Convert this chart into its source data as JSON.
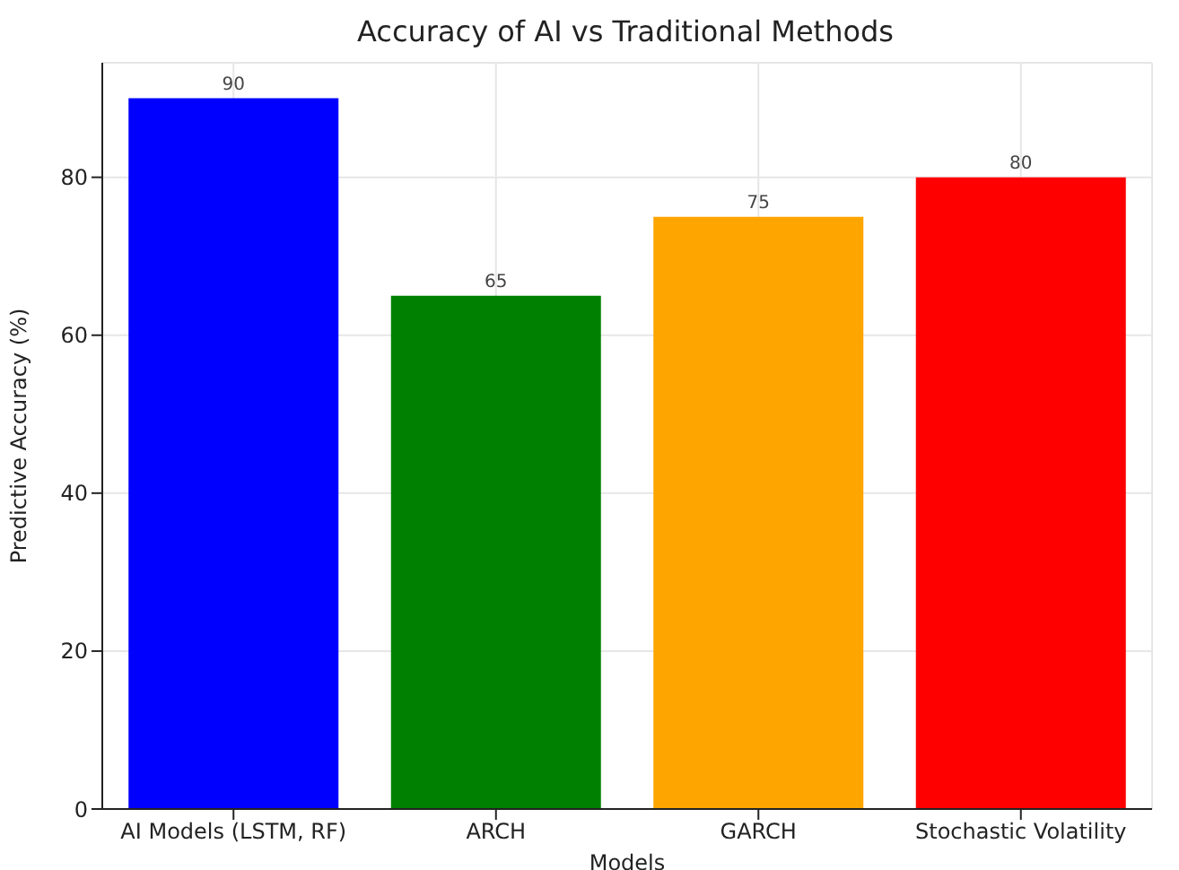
{
  "chart_data": {
    "type": "bar",
    "title": "Accuracy of AI vs Traditional Methods",
    "xlabel": "Models",
    "ylabel": "Predictive Accuracy (%)",
    "categories": [
      "AI Models (LSTM, RF)",
      "ARCH",
      "GARCH",
      "Stochastic Volatility"
    ],
    "values": [
      90,
      65,
      75,
      80
    ],
    "colors": [
      "#0000ff",
      "#008000",
      "#ffa500",
      "#ff0000"
    ],
    "ylim": [
      0,
      94.5
    ],
    "yticks": [
      0,
      20,
      40,
      60,
      80
    ],
    "grid": true,
    "data_labels": true
  }
}
